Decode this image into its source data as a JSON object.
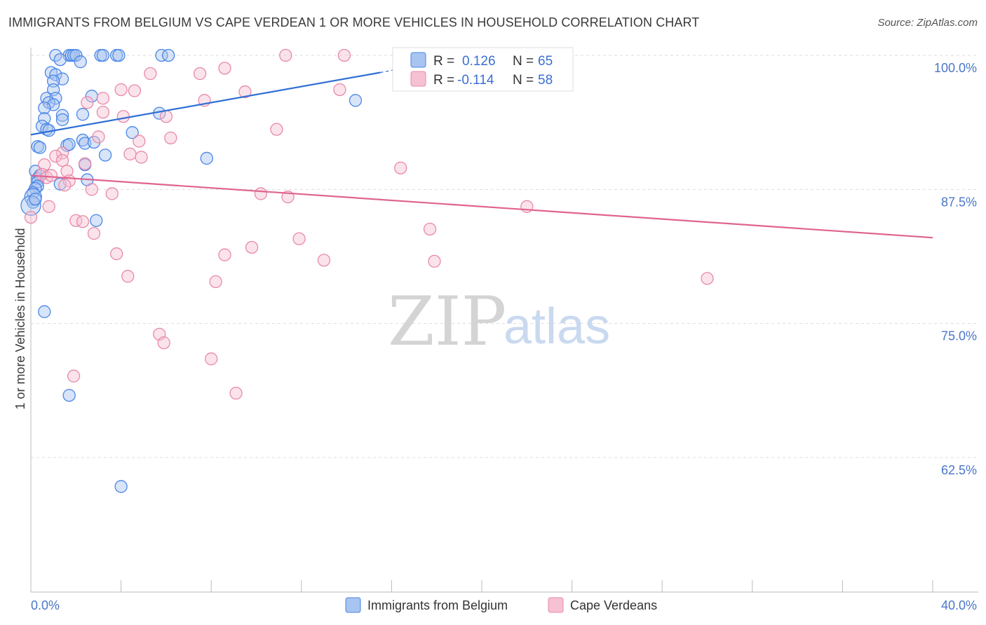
{
  "header": {
    "title": "IMMIGRANTS FROM BELGIUM VS CAPE VERDEAN 1 OR MORE VEHICLES IN HOUSEHOLD CORRELATION CHART",
    "source": "Source: ZipAtlas.com"
  },
  "watermark": {
    "zip": "ZIP",
    "atlas": "atlas"
  },
  "colors": {
    "blue": "#4a86e8",
    "blue_fill": "#a8c4f0",
    "blue_line": "#2f6fd6",
    "pink": "#e88aa8",
    "pink_fill": "#f6c1d2",
    "pink_line": "#e0648e",
    "axis_text": "#4a76c8",
    "grid": "#dcdcdc"
  },
  "stats": {
    "r_label": "R =",
    "n_label": "N =",
    "series": [
      {
        "r": "0.126",
        "n": "65"
      },
      {
        "r": "-0.114",
        "n": "58"
      }
    ]
  },
  "chart_data": {
    "type": "scatter",
    "title": "IMMIGRANTS FROM BELGIUM VS CAPE VERDEAN 1 OR MORE VEHICLES IN HOUSEHOLD CORRELATION CHART",
    "xlabel": "",
    "ylabel": "1 or more Vehicles in Household",
    "xlim": [
      0,
      40
    ],
    "ylim": [
      50,
      101.5
    ],
    "x_tick_labels": [
      "0.0%",
      "40.0%"
    ],
    "y_ticks": [
      62.5,
      75.0,
      87.5,
      100.0
    ],
    "y_tick_labels": [
      "62.5%",
      "75.0%",
      "87.5%",
      "100.0%"
    ],
    "legend": [
      "Immigrants from Belgium",
      "Cape Verdeans"
    ],
    "series": [
      {
        "name": "Immigrants from Belgium",
        "color": "#4a86e8",
        "trend": {
          "x0": 0.0,
          "y0": 92.6,
          "x1": 15.5,
          "y1": 98.4,
          "dash_to_x": 17.5,
          "dash_to_y": 99.2
        },
        "points": [
          [
            1.1,
            100
          ],
          [
            1.7,
            100
          ],
          [
            1.8,
            100
          ],
          [
            1.9,
            100
          ],
          [
            2.0,
            100
          ],
          [
            3.1,
            100
          ],
          [
            3.2,
            100
          ],
          [
            3.8,
            100
          ],
          [
            3.9,
            100
          ],
          [
            5.8,
            100
          ],
          [
            6.1,
            100
          ],
          [
            1.3,
            99.6
          ],
          [
            2.2,
            99.4
          ],
          [
            0.9,
            98.4
          ],
          [
            1.1,
            98.2
          ],
          [
            1.4,
            97.8
          ],
          [
            1.0,
            97.6
          ],
          [
            1.0,
            96.8
          ],
          [
            0.7,
            96.0
          ],
          [
            2.7,
            96.2
          ],
          [
            1.1,
            96.0
          ],
          [
            0.8,
            95.6
          ],
          [
            1.0,
            95.4
          ],
          [
            0.6,
            95.1
          ],
          [
            1.4,
            94.4
          ],
          [
            2.3,
            94.5
          ],
          [
            5.7,
            94.6
          ],
          [
            0.6,
            94.1
          ],
          [
            1.4,
            94.0
          ],
          [
            0.5,
            93.4
          ],
          [
            0.7,
            93.1
          ],
          [
            0.8,
            93.0
          ],
          [
            4.5,
            92.8
          ],
          [
            2.3,
            92.1
          ],
          [
            1.6,
            91.6
          ],
          [
            1.7,
            91.7
          ],
          [
            2.4,
            91.8
          ],
          [
            0.3,
            91.5
          ],
          [
            0.4,
            91.4
          ],
          [
            2.8,
            91.9
          ],
          [
            3.3,
            90.7
          ],
          [
            7.8,
            90.4
          ],
          [
            14.4,
            95.8
          ],
          [
            0.2,
            89.2
          ],
          [
            0.3,
            88.5
          ],
          [
            2.4,
            89.8
          ],
          [
            2.5,
            88.4
          ],
          [
            0.4,
            88.8
          ],
          [
            0.3,
            88.2
          ],
          [
            0.3,
            87.8
          ],
          [
            1.3,
            88.0
          ],
          [
            0.2,
            87.6
          ],
          [
            0.1,
            87.2
          ],
          [
            0.1,
            86.8
          ],
          [
            0.1,
            86.3
          ],
          [
            0.0,
            86.0
          ],
          [
            0.2,
            86.6
          ],
          [
            2.9,
            84.6
          ],
          [
            0.6,
            76.1
          ],
          [
            1.7,
            68.3
          ],
          [
            4.0,
            59.8
          ]
        ],
        "sizes": {
          "0.0,86.0": 14,
          "0.1,86.8": 12
        }
      },
      {
        "name": "Cape Verdeans",
        "color": "#e88aa8",
        "trend": {
          "x0": 0.0,
          "y0": 88.8,
          "x1": 40.0,
          "y1": 83.0
        },
        "points": [
          [
            11.3,
            100
          ],
          [
            13.9,
            100
          ],
          [
            5.3,
            98.3
          ],
          [
            7.5,
            98.3
          ],
          [
            8.6,
            98.8
          ],
          [
            13.7,
            96.8
          ],
          [
            9.5,
            96.6
          ],
          [
            4.0,
            96.8
          ],
          [
            4.6,
            96.7
          ],
          [
            3.2,
            96.0
          ],
          [
            7.7,
            95.8
          ],
          [
            2.5,
            95.6
          ],
          [
            3.2,
            94.7
          ],
          [
            4.1,
            94.3
          ],
          [
            6.0,
            94.3
          ],
          [
            10.9,
            93.1
          ],
          [
            3.0,
            92.4
          ],
          [
            6.2,
            92.3
          ],
          [
            4.8,
            92.0
          ],
          [
            4.4,
            90.8
          ],
          [
            4.9,
            90.5
          ],
          [
            1.4,
            90.9
          ],
          [
            1.1,
            90.6
          ],
          [
            1.4,
            90.2
          ],
          [
            2.4,
            89.9
          ],
          [
            0.6,
            89.8
          ],
          [
            16.4,
            89.5
          ],
          [
            0.5,
            88.9
          ],
          [
            1.6,
            89.2
          ],
          [
            1.7,
            88.3
          ],
          [
            1.5,
            87.9
          ],
          [
            0.7,
            88.6
          ],
          [
            0.9,
            88.8
          ],
          [
            2.7,
            87.5
          ],
          [
            3.6,
            87.1
          ],
          [
            10.2,
            87.1
          ],
          [
            11.4,
            86.8
          ],
          [
            22.0,
            85.9
          ],
          [
            0.8,
            85.9
          ],
          [
            0.0,
            84.9
          ],
          [
            2.0,
            84.6
          ],
          [
            2.3,
            84.5
          ],
          [
            2.8,
            83.4
          ],
          [
            17.7,
            83.8
          ],
          [
            11.9,
            82.9
          ],
          [
            9.8,
            82.1
          ],
          [
            3.8,
            81.5
          ],
          [
            8.6,
            81.4
          ],
          [
            13.0,
            80.9
          ],
          [
            17.9,
            80.8
          ],
          [
            4.3,
            79.4
          ],
          [
            8.2,
            78.9
          ],
          [
            30.0,
            79.2
          ],
          [
            5.7,
            74.0
          ],
          [
            5.9,
            73.2
          ],
          [
            8.0,
            71.7
          ],
          [
            1.9,
            70.1
          ],
          [
            9.1,
            68.5
          ]
        ]
      }
    ]
  }
}
